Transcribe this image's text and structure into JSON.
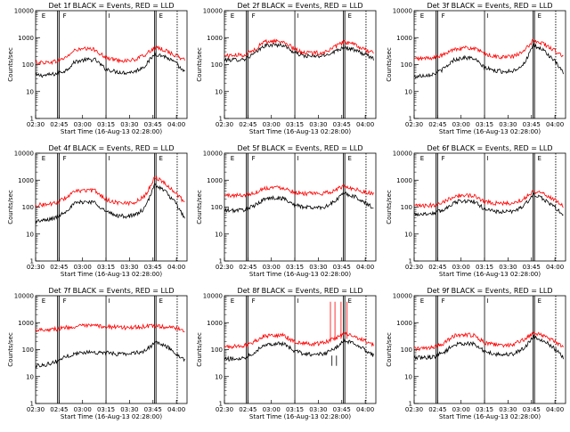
{
  "figure": {
    "date_label": "16-Aug-13",
    "start_label": "Start Time (16-Aug-13 02:28:00)"
  },
  "colors": {
    "events": "#000000",
    "lld": "#ff0000",
    "axes": "#000000"
  },
  "chart_data": [
    {
      "type": "line",
      "title": "Det 1f BLACK = Events, RED = LLD",
      "xlabel": "Start Time (16-Aug-13 02:28:00)",
      "ylabel": "Counts/sec",
      "x_ticks": [
        "02:30",
        "02:45",
        "03:00",
        "03:15",
        "03:30",
        "03:45",
        "04:00"
      ],
      "y_ticks": [
        "1",
        "10",
        "100",
        "1000",
        "10000"
      ],
      "ylim": [
        1,
        10000
      ],
      "y_scale": "log",
      "marker_labels": [
        "E",
        "F",
        "I",
        "E"
      ],
      "series": [
        {
          "name": "Events",
          "level": [
            40,
            40,
            45,
            60,
            130,
            150,
            150,
            70,
            55,
            50,
            55,
            90,
            250,
            200,
            120,
            50
          ]
        },
        {
          "name": "LLD",
          "level": [
            120,
            120,
            130,
            180,
            350,
            380,
            360,
            180,
            150,
            140,
            150,
            230,
            420,
            350,
            220,
            150
          ]
        }
      ]
    },
    {
      "type": "line",
      "title": "Det 2f BLACK = Events, RED = LLD",
      "xlabel": "Start Time (16-Aug-13 02:28:00)",
      "ylabel": "Counts/sec",
      "x_ticks": [
        "02:30",
        "02:45",
        "03:00",
        "03:15",
        "03:30",
        "03:45",
        "04:00"
      ],
      "y_ticks": [
        "1",
        "10",
        "100",
        "1000",
        "10000"
      ],
      "ylim": [
        1,
        10000
      ],
      "y_scale": "log",
      "marker_labels": [
        "E",
        "F",
        "I",
        "E"
      ],
      "series": [
        {
          "name": "Events",
          "level": [
            150,
            150,
            160,
            250,
            500,
            550,
            520,
            280,
            210,
            200,
            210,
            300,
            450,
            350,
            250,
            170
          ]
        },
        {
          "name": "LLD",
          "level": [
            220,
            220,
            230,
            350,
            700,
            750,
            700,
            380,
            280,
            270,
            280,
            420,
            700,
            550,
            380,
            260
          ]
        }
      ]
    },
    {
      "type": "line",
      "title": "Det 3f BLACK = Events, RED = LLD",
      "xlabel": "Start Time (16-Aug-13 02:28:00)",
      "ylabel": "Counts/sec",
      "x_ticks": [
        "02:30",
        "02:45",
        "03:00",
        "03:15",
        "03:30",
        "03:45",
        "04:00"
      ],
      "y_ticks": [
        "1",
        "10",
        "100",
        "1000",
        "10000"
      ],
      "ylim": [
        1,
        10000
      ],
      "y_scale": "log",
      "marker_labels": [
        "E",
        "F",
        "I",
        "E"
      ],
      "series": [
        {
          "name": "Events",
          "level": [
            35,
            40,
            45,
            70,
            150,
            180,
            170,
            80,
            60,
            55,
            60,
            100,
            500,
            350,
            150,
            50
          ]
        },
        {
          "name": "LLD",
          "level": [
            160,
            170,
            180,
            230,
            380,
            420,
            400,
            260,
            200,
            190,
            200,
            300,
            800,
            600,
            350,
            200
          ]
        }
      ]
    },
    {
      "type": "line",
      "title": "Det 4f BLACK = Events, RED = LLD",
      "xlabel": "Start Time (16-Aug-13 02:28:00)",
      "ylabel": "Counts/sec",
      "x_ticks": [
        "02:30",
        "02:45",
        "03:00",
        "03:15",
        "03:30",
        "03:45",
        "04:00"
      ],
      "y_ticks": [
        "1",
        "10",
        "100",
        "1000",
        "10000"
      ],
      "ylim": [
        1,
        10000
      ],
      "y_scale": "log",
      "marker_labels": [
        "E",
        "F",
        "I",
        "E"
      ],
      "series": [
        {
          "name": "Events",
          "level": [
            30,
            32,
            40,
            70,
            140,
            160,
            150,
            70,
            50,
            45,
            50,
            90,
            700,
            400,
            150,
            40
          ]
        },
        {
          "name": "LLD",
          "level": [
            120,
            125,
            140,
            220,
            380,
            420,
            400,
            200,
            150,
            140,
            150,
            260,
            1300,
            800,
            350,
            150
          ]
        }
      ]
    },
    {
      "type": "line",
      "title": "Det 5f BLACK = Events, RED = LLD",
      "xlabel": "Start Time (16-Aug-13 02:28:00)",
      "ylabel": "Counts/sec",
      "x_ticks": [
        "02:30",
        "02:45",
        "03:00",
        "03:15",
        "03:30",
        "03:45",
        "04:00"
      ],
      "y_ticks": [
        "1",
        "10",
        "100",
        "1000",
        "10000"
      ],
      "ylim": [
        1,
        10000
      ],
      "y_scale": "log",
      "marker_labels": [
        "E",
        "F",
        "I",
        "E"
      ],
      "series": [
        {
          "name": "Events",
          "level": [
            75,
            75,
            80,
            110,
            200,
            220,
            210,
            120,
            100,
            95,
            100,
            150,
            330,
            250,
            160,
            90
          ]
        },
        {
          "name": "LLD",
          "level": [
            270,
            270,
            280,
            330,
            500,
            550,
            520,
            360,
            320,
            310,
            320,
            400,
            600,
            480,
            380,
            300
          ]
        }
      ]
    },
    {
      "type": "line",
      "title": "Det 6f BLACK = Events, RED = LLD",
      "xlabel": "Start Time (16-Aug-13 02:28:00)",
      "ylabel": "Counts/sec",
      "x_ticks": [
        "02:30",
        "02:45",
        "03:00",
        "03:15",
        "03:30",
        "03:45",
        "04:00"
      ],
      "y_ticks": [
        "1",
        "10",
        "100",
        "1000",
        "10000"
      ],
      "ylim": [
        1,
        10000
      ],
      "y_scale": "log",
      "marker_labels": [
        "E",
        "F",
        "I",
        "E"
      ],
      "series": [
        {
          "name": "Events",
          "level": [
            55,
            55,
            60,
            80,
            150,
            170,
            160,
            90,
            70,
            65,
            70,
            110,
            280,
            200,
            110,
            50
          ]
        },
        {
          "name": "LLD",
          "level": [
            110,
            110,
            120,
            160,
            250,
            280,
            260,
            170,
            140,
            135,
            140,
            200,
            400,
            320,
            200,
            110
          ]
        }
      ]
    },
    {
      "type": "line",
      "title": "Det 7f BLACK = Events, RED = LLD",
      "xlabel": "Start Time (16-Aug-13 02:28:00)",
      "ylabel": "Counts/sec",
      "x_ticks": [
        "02:30",
        "02:45",
        "03:00",
        "03:15",
        "03:30",
        "03:45",
        "04:00"
      ],
      "y_ticks": [
        "1",
        "10",
        "100",
        "1000",
        "10000"
      ],
      "ylim": [
        1,
        10000
      ],
      "y_scale": "log",
      "marker_labels": [
        "E",
        "F",
        "I",
        "E"
      ],
      "series": [
        {
          "name": "Events",
          "level": [
            25,
            28,
            35,
            55,
            70,
            80,
            80,
            75,
            70,
            70,
            75,
            90,
            180,
            140,
            80,
            40
          ]
        },
        {
          "name": "LLD",
          "level": [
            550,
            560,
            580,
            650,
            720,
            760,
            760,
            720,
            680,
            660,
            680,
            720,
            750,
            700,
            620,
            520
          ]
        }
      ]
    },
    {
      "type": "line",
      "title": "Det 8f BLACK = Events, RED = LLD",
      "xlabel": "Start Time (16-Aug-13 02:28:00)",
      "ylabel": "Counts/sec",
      "x_ticks": [
        "02:30",
        "02:45",
        "03:00",
        "03:15",
        "03:30",
        "03:45",
        "04:00"
      ],
      "y_ticks": [
        "1",
        "10",
        "100",
        "1000",
        "10000"
      ],
      "ylim": [
        1,
        10000
      ],
      "y_scale": "log",
      "marker_labels": [
        "E",
        "F",
        "I",
        "E"
      ],
      "series": [
        {
          "name": "Events",
          "level": [
            45,
            45,
            50,
            80,
            150,
            170,
            160,
            90,
            70,
            65,
            70,
            100,
            210,
            180,
            110,
            60
          ]
        },
        {
          "name": "LLD",
          "level": [
            130,
            130,
            140,
            200,
            320,
            350,
            330,
            200,
            170,
            160,
            180,
            250,
            380,
            320,
            220,
            140
          ]
        }
      ]
    },
    {
      "type": "line",
      "title": "Det 9f BLACK = Events, RED = LLD",
      "xlabel": "Start Time (16-Aug-13 02:28:00)",
      "ylabel": "Counts/sec",
      "x_ticks": [
        "02:30",
        "02:45",
        "03:00",
        "03:15",
        "03:30",
        "03:45",
        "04:00"
      ],
      "y_ticks": [
        "1",
        "10",
        "100",
        "1000",
        "10000"
      ],
      "ylim": [
        1,
        10000
      ],
      "y_scale": "log",
      "marker_labels": [
        "E",
        "F",
        "I",
        "E"
      ],
      "series": [
        {
          "name": "Events",
          "level": [
            50,
            50,
            55,
            80,
            150,
            170,
            160,
            90,
            70,
            65,
            70,
            110,
            300,
            220,
            120,
            50
          ]
        },
        {
          "name": "LLD",
          "level": [
            110,
            110,
            120,
            170,
            320,
            360,
            340,
            190,
            150,
            145,
            155,
            230,
            420,
            330,
            210,
            120
          ]
        }
      ]
    }
  ]
}
